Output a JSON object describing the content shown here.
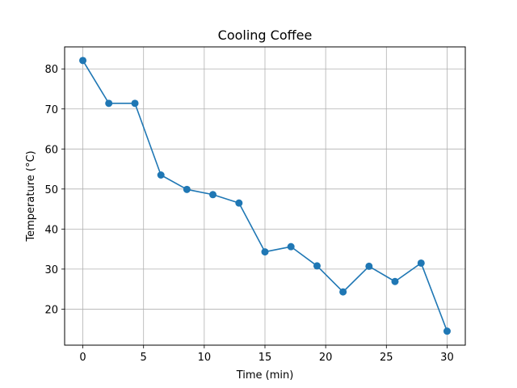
{
  "chart_data": {
    "type": "line",
    "title": "Cooling Coffee",
    "xlabel": "Time (min)",
    "ylabel": "Temperature (°C)",
    "xlim": [
      -1.5,
      31.5
    ],
    "ylim": [
      11,
      85.5
    ],
    "xticks": [
      0,
      5,
      10,
      15,
      20,
      25,
      30
    ],
    "yticks": [
      20,
      30,
      40,
      50,
      60,
      70,
      80
    ],
    "grid": true,
    "series": [
      {
        "color": "#1f77b4",
        "marker": "circle",
        "x": [
          0,
          2.14,
          4.29,
          6.43,
          8.57,
          10.71,
          12.86,
          15.0,
          17.14,
          19.29,
          21.43,
          23.57,
          25.71,
          27.86,
          30.0
        ],
        "y": [
          82.1,
          71.4,
          71.4,
          53.5,
          49.9,
          48.6,
          46.5,
          34.3,
          35.6,
          30.8,
          24.3,
          30.7,
          26.9,
          31.5,
          14.5
        ]
      }
    ]
  }
}
